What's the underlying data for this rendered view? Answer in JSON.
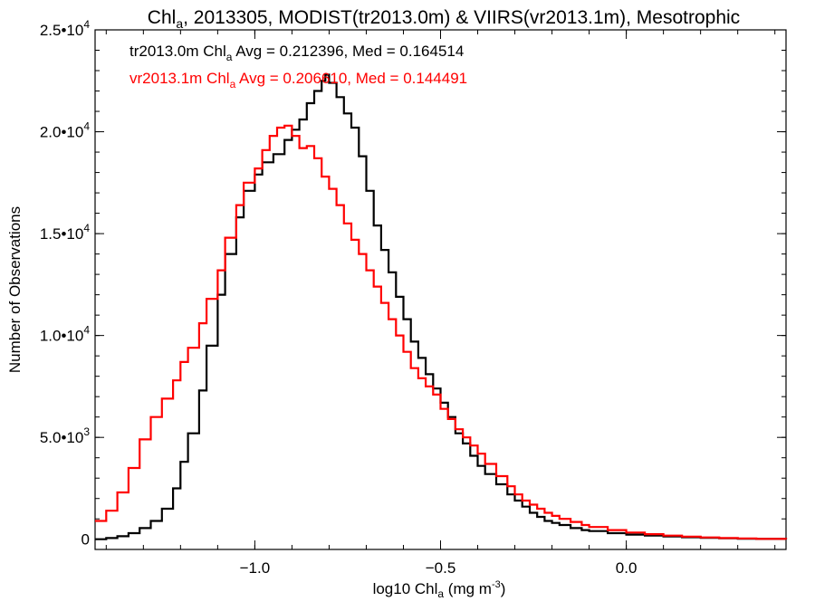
{
  "chart_data": {
    "type": "line",
    "title": {
      "prefix": "Chl",
      "sub": "a",
      "suffix": ", 2013305, MODIST(tr2013.0m) & VIIRS(vr2013.1m), Mesotrophic"
    },
    "xlabel": {
      "prefix": "log10 Chl",
      "sub": "a",
      "suffix": " (mg m",
      "sup": "-3",
      "end": ")"
    },
    "ylabel": "Number of Observations",
    "xlim": [
      -1.43,
      0.43
    ],
    "ylim": [
      -500,
      25000
    ],
    "xticks": [
      {
        "value": -1.0,
        "label": "−1.0"
      },
      {
        "value": -0.5,
        "label": "−0.5"
      },
      {
        "value": 0.0,
        "label": "0.0"
      }
    ],
    "xminor_step": 0.1,
    "yticks": [
      {
        "value": 0,
        "mant": "0",
        "exp": ""
      },
      {
        "value": 5000,
        "mant": "5.0•10",
        "exp": "3"
      },
      {
        "value": 10000,
        "mant": "1.0•10",
        "exp": "4"
      },
      {
        "value": 15000,
        "mant": "1.5•10",
        "exp": "4"
      },
      {
        "value": 20000,
        "mant": "2.0•10",
        "exp": "4"
      },
      {
        "value": 25000,
        "mant": "2.5•10",
        "exp": "4"
      }
    ],
    "yminor_step": 1000,
    "grid": false,
    "legend_position": "top-left",
    "series": [
      {
        "name": "tr2013.0m",
        "color": "#000000",
        "legend": {
          "prefix": "tr2013.0m Chl",
          "sub": "a",
          "suffix": " Avg = 0.212396, Med = 0.164514"
        },
        "x": [
          -1.43,
          -1.4,
          -1.37,
          -1.34,
          -1.31,
          -1.28,
          -1.25,
          -1.22,
          -1.2,
          -1.18,
          -1.15,
          -1.13,
          -1.1,
          -1.08,
          -1.05,
          -1.03,
          -1.0,
          -0.98,
          -0.95,
          -0.92,
          -0.9,
          -0.88,
          -0.86,
          -0.84,
          -0.82,
          -0.81,
          -0.8,
          -0.78,
          -0.76,
          -0.74,
          -0.72,
          -0.7,
          -0.68,
          -0.66,
          -0.64,
          -0.62,
          -0.6,
          -0.58,
          -0.56,
          -0.54,
          -0.52,
          -0.5,
          -0.48,
          -0.46,
          -0.44,
          -0.42,
          -0.4,
          -0.38,
          -0.35,
          -0.32,
          -0.3,
          -0.28,
          -0.26,
          -0.24,
          -0.22,
          -0.2,
          -0.18,
          -0.15,
          -0.12,
          -0.1,
          -0.05,
          0.0,
          0.05,
          0.1,
          0.15,
          0.2,
          0.25,
          0.3,
          0.35,
          0.43
        ],
        "y": [
          0,
          60,
          150,
          300,
          550,
          900,
          1500,
          2500,
          3800,
          5200,
          7300,
          9500,
          12000,
          14000,
          15800,
          17100,
          17900,
          18500,
          18900,
          19600,
          20100,
          20600,
          21400,
          22000,
          22500,
          22800,
          22400,
          21700,
          20900,
          20200,
          18800,
          17100,
          15400,
          14200,
          13100,
          11900,
          10800,
          9700,
          8900,
          8100,
          7400,
          6700,
          6000,
          5200,
          4700,
          4100,
          3600,
          3200,
          2700,
          2200,
          1900,
          1600,
          1300,
          1100,
          900,
          800,
          700,
          550,
          450,
          400,
          300,
          230,
          180,
          140,
          100,
          70,
          50,
          30,
          15,
          0
        ]
      },
      {
        "name": "vr2013.1m",
        "color": "#ff0000",
        "legend": {
          "prefix": "vr2013.1m Chl",
          "sub": "a",
          "suffix": " Avg = 0.206610, Med = 0.144491"
        },
        "x": [
          -1.43,
          -1.4,
          -1.37,
          -1.34,
          -1.31,
          -1.28,
          -1.25,
          -1.22,
          -1.2,
          -1.18,
          -1.15,
          -1.13,
          -1.1,
          -1.08,
          -1.05,
          -1.03,
          -1.0,
          -0.98,
          -0.96,
          -0.94,
          -0.92,
          -0.9,
          -0.88,
          -0.86,
          -0.84,
          -0.82,
          -0.8,
          -0.78,
          -0.76,
          -0.74,
          -0.72,
          -0.7,
          -0.68,
          -0.66,
          -0.64,
          -0.62,
          -0.6,
          -0.58,
          -0.56,
          -0.54,
          -0.52,
          -0.5,
          -0.48,
          -0.46,
          -0.44,
          -0.42,
          -0.4,
          -0.38,
          -0.35,
          -0.32,
          -0.3,
          -0.28,
          -0.26,
          -0.24,
          -0.22,
          -0.2,
          -0.18,
          -0.15,
          -0.12,
          -0.1,
          -0.05,
          0.0,
          0.05,
          0.1,
          0.15,
          0.2,
          0.25,
          0.3,
          0.35,
          0.43
        ],
        "y": [
          900,
          1400,
          2300,
          3500,
          4900,
          6000,
          6900,
          7800,
          8700,
          9400,
          10600,
          11800,
          13200,
          14800,
          16400,
          17500,
          18200,
          19100,
          19800,
          20200,
          20300,
          19800,
          19200,
          19300,
          18700,
          17800,
          17200,
          16400,
          15500,
          14700,
          14000,
          13200,
          12400,
          11600,
          10800,
          10000,
          9200,
          8400,
          7900,
          7500,
          7100,
          6400,
          5900,
          5400,
          5000,
          4600,
          4200,
          3700,
          3100,
          2600,
          2200,
          1900,
          1700,
          1500,
          1300,
          1150,
          1000,
          850,
          700,
          600,
          450,
          330,
          250,
          180,
          130,
          90,
          60,
          40,
          20,
          0
        ]
      }
    ]
  }
}
